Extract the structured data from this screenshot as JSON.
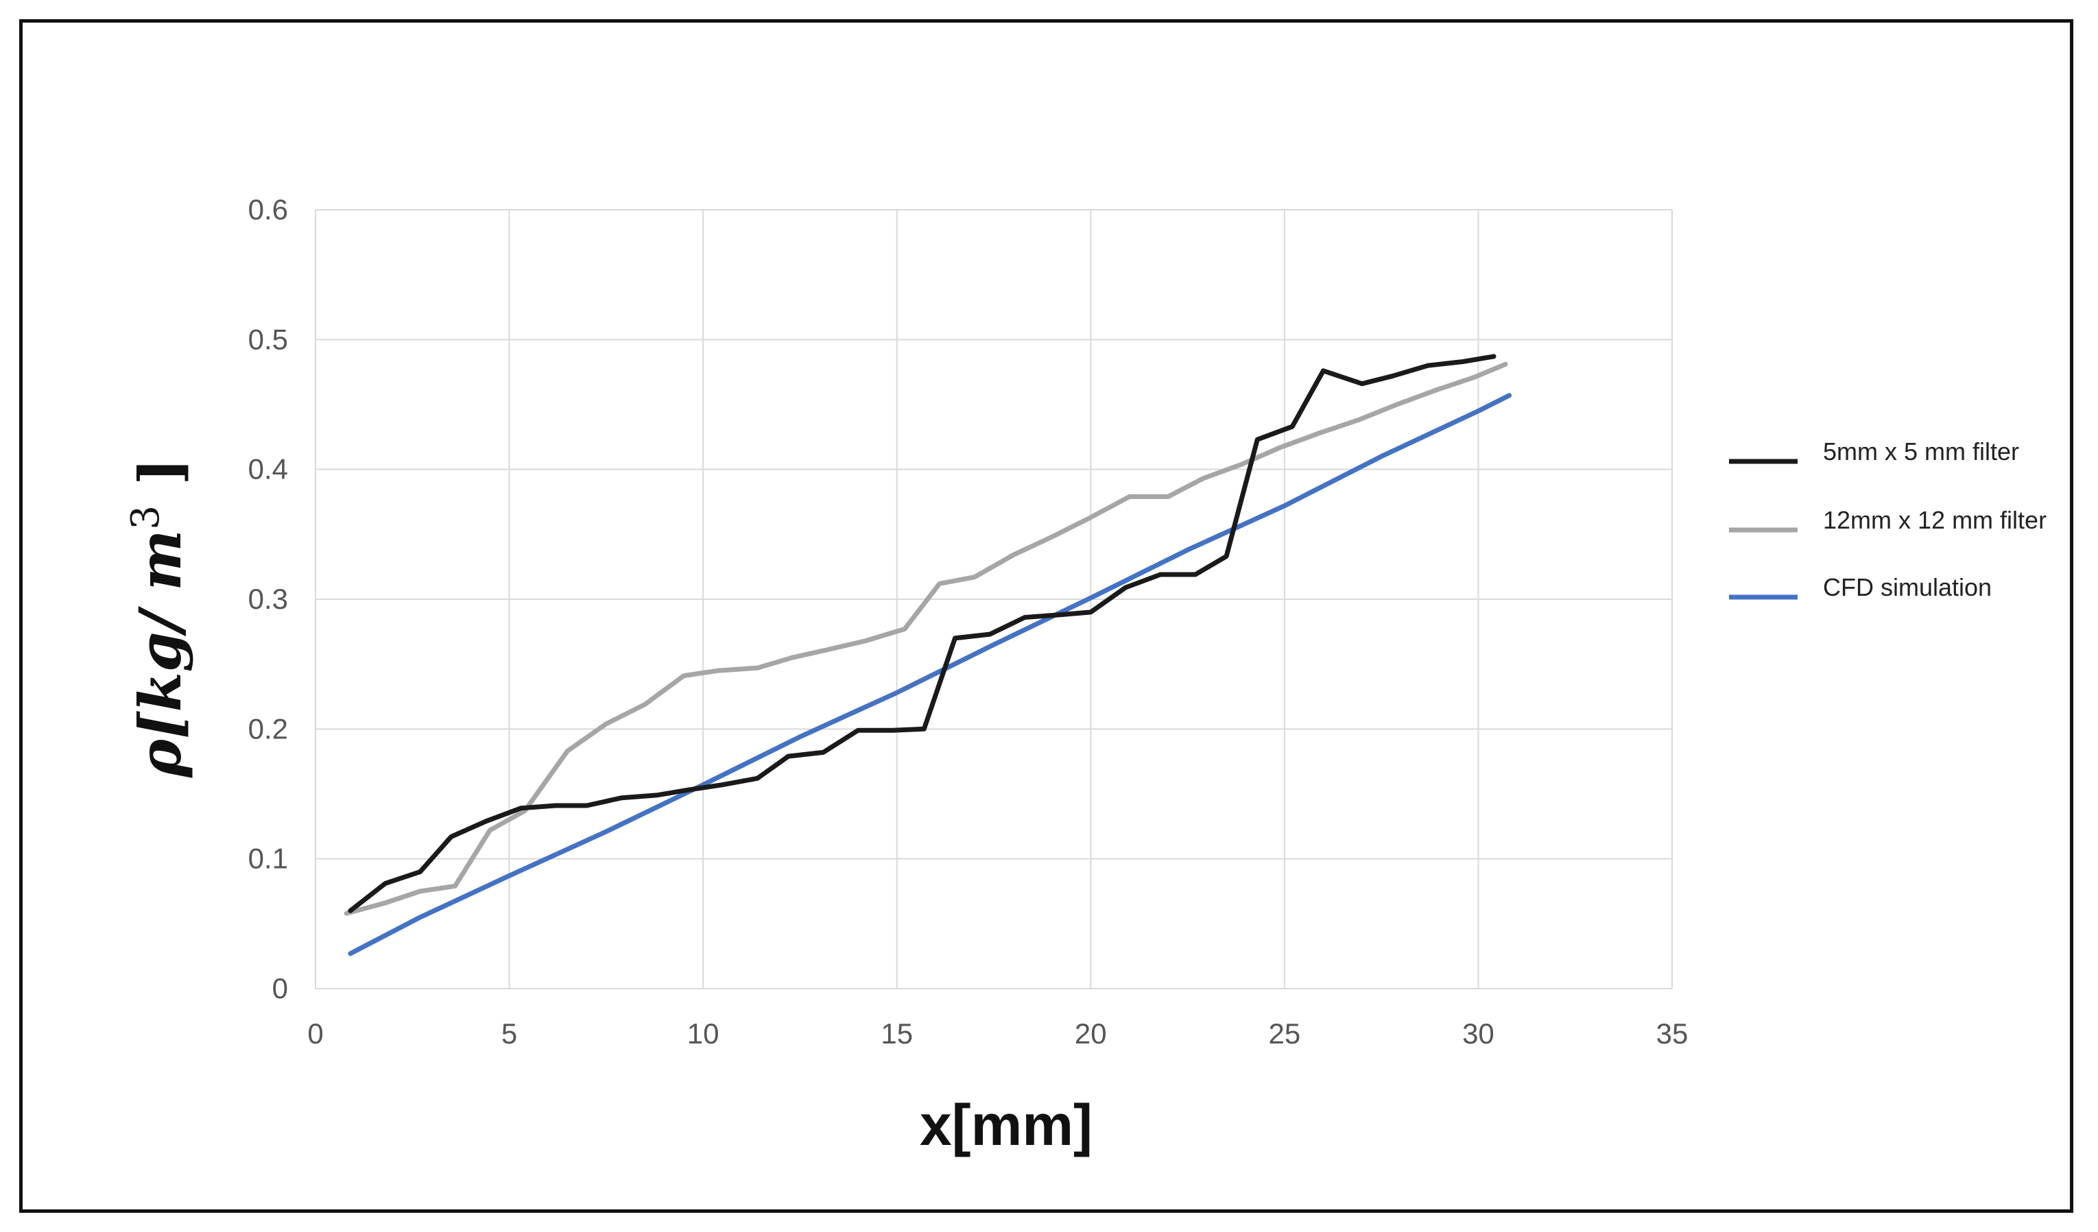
{
  "chart_data": {
    "type": "line",
    "xlabel": "x[mm]",
    "ylabel": {
      "main": "ρ[kg/ m",
      "sup": "3",
      "tail": " ]"
    },
    "xlim": [
      0,
      35
    ],
    "ylim": [
      0,
      0.6
    ],
    "x_ticks": [
      "0",
      "5",
      "10",
      "15",
      "20",
      "25",
      "30",
      "35"
    ],
    "y_ticks": [
      "0",
      "0.1",
      "0.2",
      "0.3",
      "0.4",
      "0.5",
      "0.6"
    ],
    "grid": true,
    "legend_position": "right",
    "series": [
      {
        "name": "5mm x 5 mm filter",
        "color": "#1a1a1a",
        "points": [
          [
            0.9,
            0.06
          ],
          [
            1.8,
            0.081
          ],
          [
            2.7,
            0.09
          ],
          [
            3.5,
            0.117
          ],
          [
            4.4,
            0.129
          ],
          [
            5.3,
            0.139
          ],
          [
            6.2,
            0.141
          ],
          [
            7.0,
            0.141
          ],
          [
            7.9,
            0.147
          ],
          [
            8.8,
            0.149
          ],
          [
            9.6,
            0.153
          ],
          [
            10.5,
            0.157
          ],
          [
            11.4,
            0.162
          ],
          [
            12.2,
            0.179
          ],
          [
            13.1,
            0.182
          ],
          [
            14.0,
            0.199
          ],
          [
            14.9,
            0.199
          ],
          [
            15.7,
            0.2
          ],
          [
            16.5,
            0.27
          ],
          [
            17.4,
            0.273
          ],
          [
            18.3,
            0.286
          ],
          [
            19.2,
            0.288
          ],
          [
            20.0,
            0.29
          ],
          [
            20.9,
            0.309
          ],
          [
            21.8,
            0.319
          ],
          [
            22.7,
            0.319
          ],
          [
            23.5,
            0.333
          ],
          [
            24.3,
            0.423
          ],
          [
            25.2,
            0.433
          ],
          [
            26.0,
            0.476
          ],
          [
            27.0,
            0.466
          ],
          [
            27.8,
            0.472
          ],
          [
            28.7,
            0.48
          ],
          [
            29.6,
            0.483
          ],
          [
            30.4,
            0.487
          ]
        ]
      },
      {
        "name": "12mm x 12 mm filter",
        "color": "#a6a6a6",
        "points": [
          [
            0.8,
            0.058
          ],
          [
            1.8,
            0.066
          ],
          [
            2.7,
            0.075
          ],
          [
            3.6,
            0.079
          ],
          [
            4.5,
            0.122
          ],
          [
            5.4,
            0.137
          ],
          [
            6.5,
            0.183
          ],
          [
            7.5,
            0.204
          ],
          [
            8.5,
            0.219
          ],
          [
            9.5,
            0.241
          ],
          [
            10.4,
            0.245
          ],
          [
            11.4,
            0.247
          ],
          [
            12.3,
            0.255
          ],
          [
            13.2,
            0.261
          ],
          [
            14.2,
            0.268
          ],
          [
            15.2,
            0.277
          ],
          [
            16.1,
            0.312
          ],
          [
            17.0,
            0.317
          ],
          [
            18.0,
            0.334
          ],
          [
            19.0,
            0.348
          ],
          [
            20.0,
            0.363
          ],
          [
            21.0,
            0.379
          ],
          [
            22.0,
            0.379
          ],
          [
            22.9,
            0.393
          ],
          [
            23.9,
            0.404
          ],
          [
            24.9,
            0.417
          ],
          [
            25.9,
            0.428
          ],
          [
            26.9,
            0.438
          ],
          [
            27.9,
            0.45
          ],
          [
            28.9,
            0.461
          ],
          [
            29.9,
            0.471
          ],
          [
            30.7,
            0.481
          ]
        ]
      },
      {
        "name": "CFD simulation",
        "color": "#4472c4",
        "points": [
          [
            0.9,
            0.027
          ],
          [
            2.7,
            0.055
          ],
          [
            5.0,
            0.087
          ],
          [
            7.5,
            0.121
          ],
          [
            10.0,
            0.157
          ],
          [
            12.5,
            0.194
          ],
          [
            15.0,
            0.228
          ],
          [
            17.5,
            0.265
          ],
          [
            20.0,
            0.301
          ],
          [
            22.5,
            0.338
          ],
          [
            25.0,
            0.372
          ],
          [
            27.5,
            0.41
          ],
          [
            30.0,
            0.445
          ],
          [
            30.8,
            0.457
          ]
        ]
      }
    ]
  }
}
